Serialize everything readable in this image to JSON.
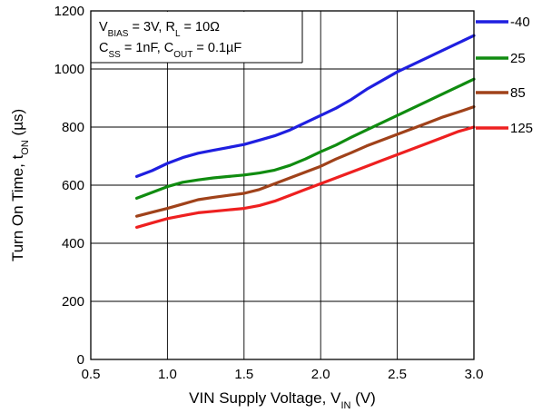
{
  "chart_data": {
    "type": "line",
    "title": "",
    "xlabel": {
      "main": "VIN Supply Voltage, V",
      "sub": "IN",
      "suffix": " (V)"
    },
    "ylabel": {
      "main": "Turn On Time, t",
      "sub": "ON",
      "suffix": " (µs)"
    },
    "xlim": [
      0.5,
      3.0
    ],
    "ylim": [
      0,
      1200
    ],
    "x_ticks": [
      0.5,
      1.0,
      1.5,
      2.0,
      2.5,
      3.0
    ],
    "x_tick_labels": [
      "0.5",
      "1.0",
      "1.5",
      "2.0",
      "2.5",
      "3.0"
    ],
    "y_ticks": [
      0,
      200,
      400,
      600,
      800,
      1000,
      1200
    ],
    "y_tick_labels": [
      "0",
      "200",
      "400",
      "600",
      "800",
      "1000",
      "1200"
    ],
    "grid": true,
    "legend_position": "right",
    "annotation": {
      "line1": [
        {
          "t": "V"
        },
        {
          "t": "BIAS",
          "sub": true
        },
        {
          "t": " = 3V, R"
        },
        {
          "t": "L",
          "sub": true
        },
        {
          "t": " = 10Ω"
        }
      ],
      "line2": [
        {
          "t": "C"
        },
        {
          "t": "SS",
          "sub": true
        },
        {
          "t": " = 1nF, C"
        },
        {
          "t": "OUT",
          "sub": true
        },
        {
          "t": " = 0.1µF"
        }
      ]
    },
    "series": [
      {
        "name": "-40",
        "color": "#1f1fe0",
        "x": [
          0.8,
          0.9,
          1.0,
          1.1,
          1.2,
          1.3,
          1.4,
          1.5,
          1.6,
          1.7,
          1.8,
          1.9,
          2.0,
          2.1,
          2.2,
          2.3,
          2.4,
          2.5,
          2.6,
          2.7,
          2.8,
          2.9,
          3.0
        ],
        "y": [
          630,
          650,
          675,
          695,
          710,
          720,
          730,
          740,
          755,
          770,
          790,
          815,
          840,
          865,
          895,
          930,
          960,
          990,
          1015,
          1040,
          1065,
          1090,
          1115
        ]
      },
      {
        "name": "25",
        "color": "#108c10",
        "x": [
          0.8,
          0.9,
          1.0,
          1.1,
          1.2,
          1.3,
          1.4,
          1.5,
          1.6,
          1.7,
          1.8,
          1.9,
          2.0,
          2.1,
          2.2,
          2.3,
          2.4,
          2.5,
          2.6,
          2.7,
          2.8,
          2.9,
          3.0
        ],
        "y": [
          555,
          575,
          595,
          610,
          618,
          625,
          630,
          635,
          642,
          652,
          668,
          690,
          715,
          738,
          765,
          790,
          815,
          840,
          865,
          890,
          915,
          940,
          965
        ]
      },
      {
        "name": "85",
        "color": "#a0421a",
        "x": [
          0.8,
          0.9,
          1.0,
          1.1,
          1.2,
          1.3,
          1.4,
          1.5,
          1.6,
          1.7,
          1.8,
          1.9,
          2.0,
          2.1,
          2.2,
          2.3,
          2.4,
          2.5,
          2.6,
          2.7,
          2.8,
          2.9,
          3.0
        ],
        "y": [
          493,
          507,
          520,
          535,
          550,
          558,
          565,
          572,
          585,
          605,
          625,
          645,
          665,
          690,
          712,
          735,
          755,
          775,
          795,
          815,
          835,
          852,
          870
        ]
      },
      {
        "name": "125",
        "color": "#ee2020",
        "x": [
          0.8,
          0.9,
          1.0,
          1.1,
          1.2,
          1.3,
          1.4,
          1.5,
          1.6,
          1.7,
          1.8,
          1.9,
          2.0,
          2.1,
          2.2,
          2.3,
          2.4,
          2.5,
          2.6,
          2.7,
          2.8,
          2.9,
          3.0
        ],
        "y": [
          455,
          470,
          485,
          495,
          505,
          510,
          515,
          520,
          530,
          545,
          565,
          585,
          605,
          625,
          645,
          665,
          685,
          705,
          725,
          745,
          765,
          785,
          800
        ]
      }
    ]
  }
}
